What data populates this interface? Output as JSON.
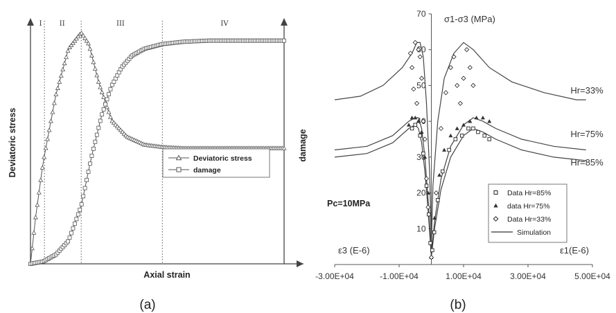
{
  "chart_data": [
    {
      "type": "line",
      "panel_label": "(a)",
      "xlabel": "Axial strain",
      "ylabel_left": "Deviatoric stress",
      "ylabel_right": "damage",
      "stage_labels": [
        "I",
        "II",
        "III",
        "IV"
      ],
      "stage_boundaries": [
        0.055,
        0.2,
        0.52
      ],
      "series": [
        {
          "name": "Deviatoric stress",
          "marker": "triangle",
          "x": [
            0.0,
            0.02,
            0.05,
            0.1,
            0.15,
            0.2,
            0.23,
            0.27,
            0.32,
            0.38,
            0.45,
            0.52,
            0.6,
            0.7,
            0.8,
            0.9,
            1.0
          ],
          "y": [
            0.0,
            0.2,
            0.44,
            0.73,
            0.93,
            1.0,
            0.95,
            0.78,
            0.62,
            0.55,
            0.515,
            0.505,
            0.5,
            0.5,
            0.5,
            0.5,
            0.5
          ]
        },
        {
          "name": "damage",
          "marker": "square",
          "x": [
            0.0,
            0.05,
            0.1,
            0.15,
            0.2,
            0.24,
            0.28,
            0.32,
            0.36,
            0.4,
            0.45,
            0.52,
            0.6,
            0.7,
            0.8,
            0.9,
            1.0
          ],
          "y": [
            0.0,
            0.01,
            0.04,
            0.1,
            0.25,
            0.46,
            0.64,
            0.77,
            0.85,
            0.9,
            0.93,
            0.95,
            0.96,
            0.965,
            0.965,
            0.965,
            0.965
          ]
        }
      ]
    },
    {
      "type": "line",
      "panel_label": "(b)",
      "ylabel": "σ1-σ3 (MPa)",
      "xlabel_left": "ε3 (E-6)",
      "xlabel_right": "ε1(E-6)",
      "condition": "Pc=10MPa",
      "xlim": [
        -30000,
        50000
      ],
      "ylim": [
        0,
        70
      ],
      "x_ticks": [
        "-3.00E+04",
        "-1.00E+04",
        "1.00E+04",
        "3.00E+04",
        "5.00E+04"
      ],
      "x_tick_values": [
        -30000,
        -10000,
        10000,
        30000,
        50000
      ],
      "y_ticks": [
        10,
        20,
        30,
        40,
        50,
        60,
        70
      ],
      "curve_labels": [
        "Hr=33%",
        "Hr=75%",
        "Hr=85%"
      ],
      "legend": [
        "Data Hr=85%",
        "data Hr=75%",
        "Data Hr=33%",
        "Simulation"
      ],
      "simulation": [
        {
          "name": "Hr=33%",
          "x": [
            -30000,
            -22000,
            -15000,
            -9000,
            -6000,
            -4500,
            -3500,
            -2500,
            -1500,
            -500,
            0,
            500,
            2000,
            4000,
            7000,
            10000,
            13000,
            18000,
            25000,
            35000,
            45000,
            48000
          ],
          "y": [
            46,
            47,
            50,
            55,
            59,
            62,
            62,
            58,
            45,
            25,
            5,
            22,
            40,
            52,
            59,
            62,
            60,
            55,
            51,
            48,
            46,
            46
          ]
        },
        {
          "name": "Hr=75%",
          "x": [
            -30000,
            -20000,
            -12000,
            -7000,
            -5000,
            -4000,
            -3000,
            -2000,
            -1000,
            0,
            1000,
            3000,
            6000,
            10000,
            13000,
            16000,
            20000,
            28000,
            38000,
            48000
          ],
          "y": [
            32,
            33,
            36,
            40,
            41,
            41,
            38,
            30,
            18,
            3,
            12,
            24,
            33,
            39,
            41,
            40,
            38,
            35,
            33,
            32
          ]
        },
        {
          "name": "Hr=85%",
          "x": [
            -30000,
            -20000,
            -12000,
            -7000,
            -5000,
            -4000,
            -3000,
            -2000,
            -1000,
            0,
            1000,
            3000,
            6000,
            10000,
            13000,
            16000,
            20000,
            28000,
            38000,
            48000
          ],
          "y": [
            30,
            31,
            34,
            38,
            39,
            38,
            34,
            26,
            15,
            2,
            10,
            21,
            30,
            36,
            38,
            37,
            35,
            32,
            30,
            29
          ]
        }
      ],
      "data_points": [
        {
          "name": "Data Hr=85%",
          "x": [
            -6000,
            -5000,
            -3500,
            -2500,
            -1500,
            -800,
            -300,
            300,
            900,
            2000,
            3500,
            5500,
            7500,
            9500,
            11500,
            13000,
            14500,
            16500,
            18000
          ],
          "y": [
            38,
            39,
            36,
            31,
            22,
            14,
            6,
            4,
            9,
            18,
            26,
            32,
            35,
            36,
            38,
            38,
            37,
            36,
            35
          ]
        },
        {
          "name": "data Hr=75%",
          "x": [
            -7000,
            -6000,
            -5000,
            -4000,
            -3000,
            -2000,
            -1000,
            0,
            1000,
            2500,
            4000,
            6000,
            8000,
            10000,
            12000,
            14000,
            16000,
            18000
          ],
          "y": [
            39,
            41,
            41,
            40,
            37,
            30,
            20,
            2,
            13,
            25,
            32,
            36,
            38,
            39,
            40,
            41,
            41,
            40
          ]
        },
        {
          "name": "Data Hr=33%",
          "x": [
            -6500,
            -6000,
            -5500,
            -5000,
            -4500,
            -4000,
            -3500,
            -3000,
            -2500,
            -2000,
            -1500,
            -1000,
            0,
            1500,
            3000,
            4500,
            6000,
            7000,
            8000,
            9000,
            10000,
            11000,
            12000,
            13000
          ],
          "y": [
            59,
            55,
            49,
            62,
            45,
            60,
            58,
            52,
            40,
            35,
            24,
            16,
            2,
            20,
            38,
            48,
            55,
            58,
            50,
            45,
            52,
            60,
            55,
            50
          ]
        }
      ]
    }
  ]
}
